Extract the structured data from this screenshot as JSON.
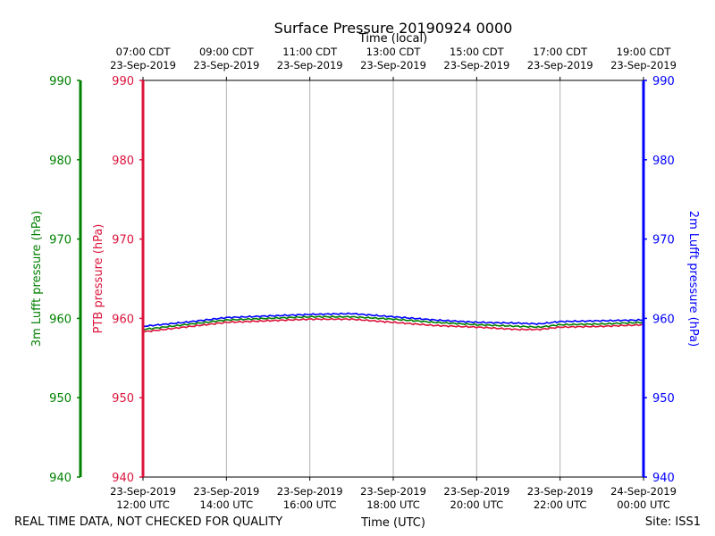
{
  "chart_data": {
    "type": "line",
    "title": "Surface Pressure 20190924 0000",
    "top_axis_label": "Time (local)",
    "bottom_axis_label": "Time (UTC)",
    "footer_left": "REAL TIME DATA, NOT CHECKED FOR QUALITY",
    "footer_right": "Site: ISS1",
    "x_range_hours": [
      12,
      24
    ],
    "ylim": [
      940,
      990
    ],
    "y_ticks": [
      940,
      950,
      960,
      970,
      980,
      990
    ],
    "grid": "vertical",
    "x_ticks": [
      {
        "hour": 12,
        "utc_date": "23-Sep-2019",
        "utc_time": "12:00 UTC",
        "local_time": "07:00 CDT",
        "local_date": "23-Sep-2019"
      },
      {
        "hour": 14,
        "utc_date": "23-Sep-2019",
        "utc_time": "14:00 UTC",
        "local_time": "09:00 CDT",
        "local_date": "23-Sep-2019"
      },
      {
        "hour": 16,
        "utc_date": "23-Sep-2019",
        "utc_time": "16:00 UTC",
        "local_time": "11:00 CDT",
        "local_date": "23-Sep-2019"
      },
      {
        "hour": 18,
        "utc_date": "23-Sep-2019",
        "utc_time": "18:00 UTC",
        "local_time": "13:00 CDT",
        "local_date": "23-Sep-2019"
      },
      {
        "hour": 20,
        "utc_date": "23-Sep-2019",
        "utc_time": "20:00 UTC",
        "local_time": "15:00 CDT",
        "local_date": "23-Sep-2019"
      },
      {
        "hour": 22,
        "utc_date": "23-Sep-2019",
        "utc_time": "22:00 UTC",
        "local_time": "17:00 CDT",
        "local_date": "23-Sep-2019"
      },
      {
        "hour": 24,
        "utc_date": "24-Sep-2019",
        "utc_time": "00:00 UTC",
        "local_time": "19:00 CDT",
        "local_date": "23-Sep-2019"
      }
    ],
    "axes": [
      {
        "id": "lufft3m",
        "label": "3m Lufft pressure (hPa)",
        "color": "#008000"
      },
      {
        "id": "ptb",
        "label": "PTB pressure (hPa)",
        "color": "#dc143c"
      },
      {
        "id": "lufft2m",
        "label": "2m Lufft pressure (hPa)",
        "color": "#0000ff"
      }
    ],
    "series": [
      {
        "name": "PTB pressure",
        "color": "#dc143c",
        "x": [
          12,
          13,
          14,
          15,
          16,
          17,
          18,
          19,
          20,
          21,
          21.5,
          22,
          23,
          24
        ],
        "values": [
          958.3,
          958.9,
          959.5,
          959.7,
          959.9,
          959.9,
          959.5,
          959.1,
          958.9,
          958.6,
          958.6,
          958.9,
          959.0,
          959.2
        ]
      },
      {
        "name": "3m Lufft pressure",
        "color": "#008000",
        "x": [
          12,
          13,
          14,
          15,
          16,
          17,
          18,
          19,
          20,
          21,
          21.5,
          22,
          23,
          24
        ],
        "values": [
          958.6,
          959.2,
          959.8,
          960.0,
          960.2,
          960.2,
          959.9,
          959.5,
          959.2,
          959.0,
          958.9,
          959.2,
          959.3,
          959.5
        ]
      },
      {
        "name": "2m Lufft pressure",
        "color": "#0000ff",
        "x": [
          12,
          13,
          14,
          15,
          16,
          17,
          18,
          19,
          20,
          21,
          21.5,
          22,
          23,
          24
        ],
        "values": [
          959.0,
          959.5,
          960.1,
          960.3,
          960.5,
          960.6,
          960.2,
          959.8,
          959.5,
          959.4,
          959.3,
          959.6,
          959.7,
          959.8
        ]
      }
    ]
  }
}
